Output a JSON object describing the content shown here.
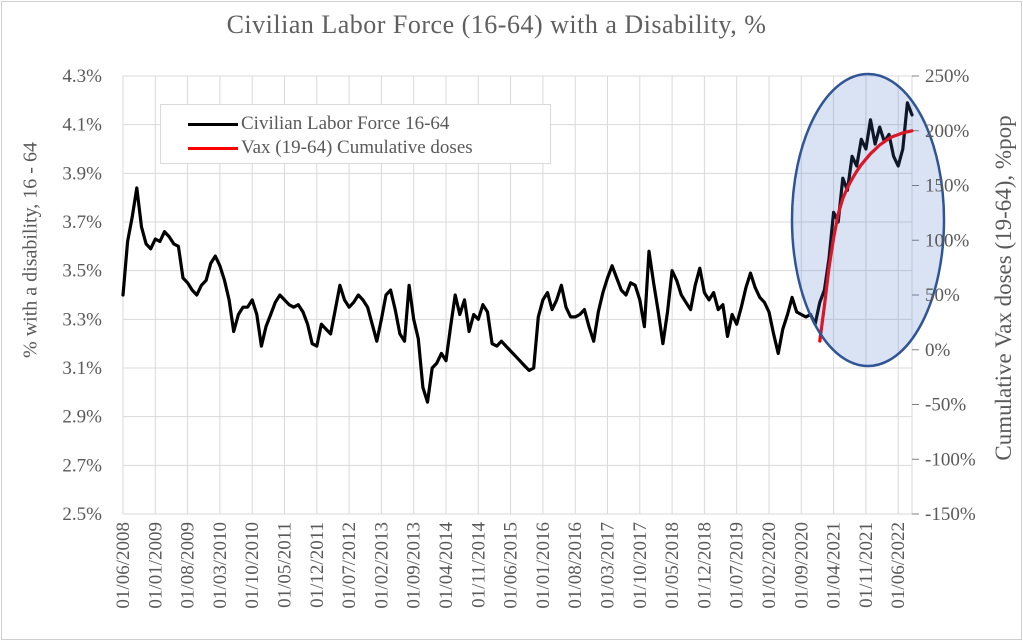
{
  "colors": {
    "series_black": "#000000",
    "series_red": "#ff0000",
    "gridline": "#d9d9d9",
    "plot_border": "#d9d9d9",
    "tick_mark": "#808080",
    "tick_text": "#595959",
    "title_text": "#5f5f5f",
    "ellipse_stroke": "#2f5597",
    "ellipse_fill": "#4472c4",
    "ellipse_fill_opacity": 0.2,
    "background": "#ffffff"
  },
  "chart_data": {
    "type": "line",
    "title": "Civilian Labor Force (16-64) with a Disability, %",
    "legend_position": "top-left-inside",
    "grid": true,
    "x_axis": {
      "tick_labels": [
        "01/06/2008",
        "01/01/2009",
        "01/08/2009",
        "01/03/2010",
        "01/10/2010",
        "01/05/2011",
        "01/12/2011",
        "01/07/2012",
        "01/02/2013",
        "01/09/2013",
        "01/04/2014",
        "01/11/2014",
        "01/06/2015",
        "01/01/2016",
        "01/08/2016",
        "01/03/2017",
        "01/10/2017",
        "01/05/2018",
        "01/12/2018",
        "01/07/2019",
        "01/02/2020",
        "01/09/2020",
        "01/04/2021",
        "01/11/2021",
        "01/06/2022"
      ],
      "tick_interval_months": 7,
      "start_month": "2008-06",
      "end_month": "2022-09"
    },
    "left_axis": {
      "label": "% with a disability, 16 - 64",
      "tick_labels": [
        "4.3%",
        "4.1%",
        "3.9%",
        "3.7%",
        "3.5%",
        "3.3%",
        "3.1%",
        "2.9%",
        "2.7%",
        "2.5%"
      ],
      "min": 2.5,
      "max": 4.3,
      "step": 0.2
    },
    "right_axis": {
      "label": "Cumulative Vax doses (19-64), %pop",
      "tick_labels": [
        "250%",
        "200%",
        "150%",
        "100%",
        "50%",
        "0%",
        "-50%",
        "-100%",
        "-150%"
      ],
      "min": -150,
      "max": 250,
      "step": 50
    },
    "series": [
      {
        "name": "Civilian Labor Force 16-64",
        "axis": "left",
        "color": "#000000",
        "start_month_index": 0,
        "values": [
          3.4,
          3.62,
          3.72,
          3.84,
          3.68,
          3.61,
          3.59,
          3.63,
          3.62,
          3.66,
          3.64,
          3.61,
          3.6,
          3.47,
          3.45,
          3.42,
          3.4,
          3.44,
          3.46,
          3.53,
          3.56,
          3.52,
          3.46,
          3.38,
          3.25,
          3.32,
          3.35,
          3.35,
          3.38,
          3.32,
          3.19,
          3.27,
          3.32,
          3.37,
          3.4,
          3.38,
          3.36,
          3.35,
          3.36,
          3.33,
          3.28,
          3.2,
          3.19,
          3.28,
          3.26,
          3.24,
          3.34,
          3.44,
          3.38,
          3.35,
          3.37,
          3.4,
          3.38,
          3.35,
          3.28,
          3.21,
          3.3,
          3.4,
          3.42,
          3.34,
          3.24,
          3.21,
          3.44,
          3.3,
          3.22,
          3.02,
          2.96,
          3.1,
          3.12,
          3.16,
          3.13,
          3.27,
          3.4,
          3.32,
          3.38,
          3.25,
          3.32,
          3.3,
          3.36,
          3.33,
          3.2,
          3.19,
          3.21,
          3.19,
          3.17,
          3.15,
          3.13,
          3.11,
          3.09,
          3.1,
          3.31,
          3.38,
          3.41,
          3.34,
          3.38,
          3.44,
          3.35,
          3.31,
          3.31,
          3.32,
          3.34,
          3.27,
          3.21,
          3.33,
          3.41,
          3.47,
          3.52,
          3.47,
          3.42,
          3.4,
          3.45,
          3.44,
          3.38,
          3.27,
          3.58,
          3.45,
          3.33,
          3.2,
          3.33,
          3.5,
          3.46,
          3.4,
          3.37,
          3.34,
          3.44,
          3.51,
          3.41,
          3.38,
          3.41,
          3.34,
          3.36,
          3.23,
          3.32,
          3.28,
          3.35,
          3.43,
          3.49,
          3.43,
          3.39,
          3.37,
          3.33,
          3.24,
          3.16,
          3.26,
          3.32,
          3.39,
          3.33,
          3.32,
          3.31,
          3.32,
          3.28,
          3.37,
          3.42,
          3.55,
          3.74,
          3.7,
          3.88,
          3.83,
          3.97,
          3.93,
          4.04,
          4.0,
          4.12,
          4.02,
          4.09,
          4.03,
          4.06,
          3.97,
          3.93,
          4.0,
          4.19,
          4.14
        ]
      },
      {
        "name": "Vax (19-64) Cumulative doses",
        "axis": "right",
        "color": "#ff0000",
        "start_month_index": 151,
        "values": [
          8,
          40,
          75,
          102,
          124,
          138,
          148,
          156,
          163,
          169,
          174,
          179,
          183,
          187,
          190,
          193,
          195,
          196.5,
          198,
          199,
          200
        ]
      }
    ],
    "annotation": {
      "type": "highlight-ellipse",
      "covers": "2021-01 to 2022-09",
      "stroke": "#2f5597",
      "fill": "#4472c4",
      "fill_opacity": 0.2
    }
  }
}
